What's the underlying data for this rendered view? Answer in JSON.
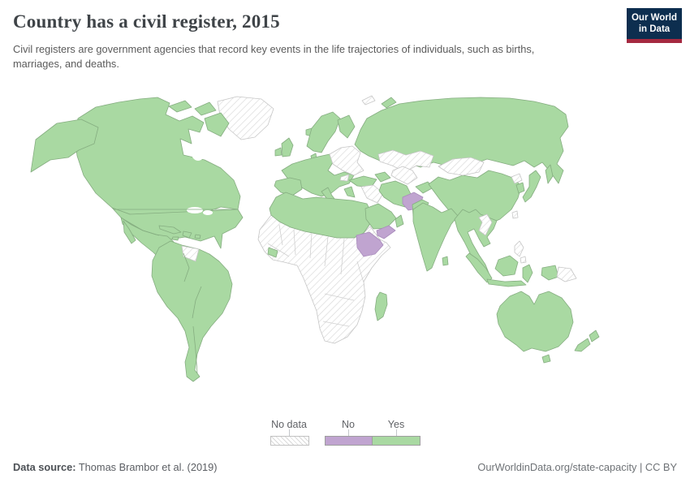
{
  "header": {
    "title": "Country has a civil register, 2015",
    "subtitle": "Civil registers are government agencies that record key events in the life trajectories of individuals, such as births, marriages, and deaths.",
    "logo": {
      "line1": "Our World",
      "line2": "in Data"
    }
  },
  "legend": {
    "no_data_label": "No data",
    "no_label": "No",
    "yes_label": "Yes"
  },
  "footer": {
    "source_label": "Data source:",
    "source_text": " Thomas Brambor et al. (2019)",
    "attribution": "OurWorldinData.org/state-capacity | CC BY"
  },
  "colors": {
    "yes": "#a9d9a2",
    "no": "#c0a4d0",
    "no_data_hatch": "#d9d9d9",
    "border": "#c6c6c6",
    "yes_border": "#85ad80",
    "no_border": "#a98cbc",
    "logo_bg": "#0d2e4f",
    "logo_accent": "#a52940"
  },
  "chart_data": {
    "type": "choropleth_map",
    "title": "Country has a civil register",
    "year": 2015,
    "categories": [
      "Yes",
      "No",
      "No data"
    ],
    "legend_position": "bottom-center",
    "regions": [
      {
        "id": "greenland",
        "name": "Greenland",
        "status": "no_data"
      },
      {
        "id": "sub_saharan",
        "name": "Sub-Saharan Africa (most countries)",
        "status": "no_data"
      },
      {
        "id": "alaska",
        "name": "United States (Alaska)",
        "status": "yes"
      },
      {
        "id": "canada",
        "name": "Canada",
        "status": "yes"
      },
      {
        "id": "arctic_island1",
        "name": "Canada (Arctic islands west)",
        "status": "yes"
      },
      {
        "id": "arctic_island2",
        "name": "Canada (Arctic islands east)",
        "status": "yes"
      },
      {
        "id": "baffin",
        "name": "Canada (Baffin Island)",
        "status": "yes"
      },
      {
        "id": "usa",
        "name": "United States",
        "status": "yes"
      },
      {
        "id": "mexico",
        "name": "Mexico",
        "status": "yes"
      },
      {
        "id": "baja",
        "name": "Mexico (Baja California)",
        "status": "yes"
      },
      {
        "id": "central_america",
        "name": "Central America",
        "status": "yes"
      },
      {
        "id": "cuba",
        "name": "Cuba",
        "status": "yes"
      },
      {
        "id": "hispaniola",
        "name": "Hispaniola",
        "status": "yes"
      },
      {
        "id": "jamaica",
        "name": "Jamaica",
        "status": "yes"
      },
      {
        "id": "puerto_rico",
        "name": "Puerto Rico",
        "status": "yes"
      },
      {
        "id": "trinidad",
        "name": "Trinidad and Tobago",
        "status": "yes"
      },
      {
        "id": "south_america",
        "name": "South America (most countries)",
        "status": "yes"
      },
      {
        "id": "guyanas",
        "name": "Guyana, Suriname & French Guiana",
        "status": "no_data"
      },
      {
        "id": "iceland",
        "name": "Iceland",
        "status": "yes"
      },
      {
        "id": "uk",
        "name": "United Kingdom",
        "status": "yes"
      },
      {
        "id": "ireland",
        "name": "Ireland",
        "status": "yes"
      },
      {
        "id": "scandinavia",
        "name": "Norway & Sweden",
        "status": "yes"
      },
      {
        "id": "finland",
        "name": "Finland",
        "status": "yes"
      },
      {
        "id": "denmark",
        "name": "Denmark",
        "status": "yes"
      },
      {
        "id": "mainland_europe",
        "name": "Western & Central Europe",
        "status": "yes"
      },
      {
        "id": "iberia",
        "name": "Spain & Portugal",
        "status": "yes"
      },
      {
        "id": "italy",
        "name": "Italy",
        "status": "yes"
      },
      {
        "id": "sicily",
        "name": "Italy (Sicily)",
        "status": "yes"
      },
      {
        "id": "greece",
        "name": "Greece",
        "status": "yes"
      },
      {
        "id": "balkan_patch",
        "name": "Western Balkans",
        "status": "no_data"
      },
      {
        "id": "ukraine_block",
        "name": "Baltics, Belarus & Ukraine",
        "status": "no_data"
      },
      {
        "id": "russia",
        "name": "Russia",
        "status": "yes"
      },
      {
        "id": "novaya_zemlya",
        "name": "Russia (Novaya Zemlya)",
        "status": "yes"
      },
      {
        "id": "svalbard",
        "name": "Svalbard",
        "status": "no_data"
      },
      {
        "id": "sakhalin",
        "name": "Russia (Sakhalin)",
        "status": "yes"
      },
      {
        "id": "caucasus",
        "name": "Caucasus",
        "status": "yes"
      },
      {
        "id": "turkey",
        "name": "Turkey",
        "status": "yes"
      },
      {
        "id": "syria_iraq",
        "name": "Syria & Iraq",
        "status": "no_data"
      },
      {
        "id": "iran",
        "name": "Iran",
        "status": "yes"
      },
      {
        "id": "afghanistan",
        "name": "Afghanistan",
        "status": "no"
      },
      {
        "id": "kazakhstan",
        "name": "Kazakhstan",
        "status": "no_data"
      },
      {
        "id": "uzbek_turkmen",
        "name": "Uzbekistan & Turkmenistan",
        "status": "no_data"
      },
      {
        "id": "kyrgyz_tajik",
        "name": "Kyrgyzstan & Tajikistan",
        "status": "yes"
      },
      {
        "id": "mongolia",
        "name": "Mongolia",
        "status": "no_data"
      },
      {
        "id": "china",
        "name": "China",
        "status": "yes"
      },
      {
        "id": "north_korea",
        "name": "North Korea",
        "status": "no_data"
      },
      {
        "id": "south_korea",
        "name": "South Korea",
        "status": "yes"
      },
      {
        "id": "japan",
        "name": "Japan",
        "status": "yes"
      },
      {
        "id": "taiwan",
        "name": "Taiwan",
        "status": "no_data"
      },
      {
        "id": "pakistan",
        "name": "Pakistan",
        "status": "yes"
      },
      {
        "id": "india",
        "name": "India",
        "status": "yes"
      },
      {
        "id": "sri_lanka",
        "name": "Sri Lanka",
        "status": "yes"
      },
      {
        "id": "indochina",
        "name": "Myanmar, Thailand & Vietnam",
        "status": "yes"
      },
      {
        "id": "laos_cambodia",
        "name": "Laos & Cambodia",
        "status": "no_data"
      },
      {
        "id": "philippines",
        "name": "Philippines (north)",
        "status": "no_data"
      },
      {
        "id": "philippines2",
        "name": "Philippines (south)",
        "status": "no_data"
      },
      {
        "id": "sumatra",
        "name": "Indonesia (Sumatra)",
        "status": "yes"
      },
      {
        "id": "borneo",
        "name": "Malaysia & Indonesia (Borneo)",
        "status": "yes"
      },
      {
        "id": "java",
        "name": "Indonesia (Java)",
        "status": "yes"
      },
      {
        "id": "sulawesi",
        "name": "Indonesia (Sulawesi)",
        "status": "yes"
      },
      {
        "id": "west_new_guinea",
        "name": "Indonesia (Papua)",
        "status": "yes"
      },
      {
        "id": "png",
        "name": "Papua New Guinea",
        "status": "no_data"
      },
      {
        "id": "australia",
        "name": "Australia",
        "status": "yes"
      },
      {
        "id": "tasmania",
        "name": "Australia (Tasmania)",
        "status": "yes"
      },
      {
        "id": "nz_north",
        "name": "New Zealand (North Island)",
        "status": "yes"
      },
      {
        "id": "nz_south",
        "name": "New Zealand (South Island)",
        "status": "yes"
      },
      {
        "id": "north_africa",
        "name": "Morocco, Algeria, Tunisia, Libya & Egypt",
        "status": "yes"
      },
      {
        "id": "liberia",
        "name": "Liberia",
        "status": "yes"
      },
      {
        "id": "madagascar",
        "name": "Madagascar",
        "status": "yes"
      },
      {
        "id": "ethiopia",
        "name": "Ethiopia",
        "status": "no"
      },
      {
        "id": "saudi",
        "name": "Saudi Arabia",
        "status": "yes"
      },
      {
        "id": "oman",
        "name": "Oman",
        "status": "yes"
      },
      {
        "id": "yemen",
        "name": "Yemen",
        "status": "no"
      }
    ]
  }
}
